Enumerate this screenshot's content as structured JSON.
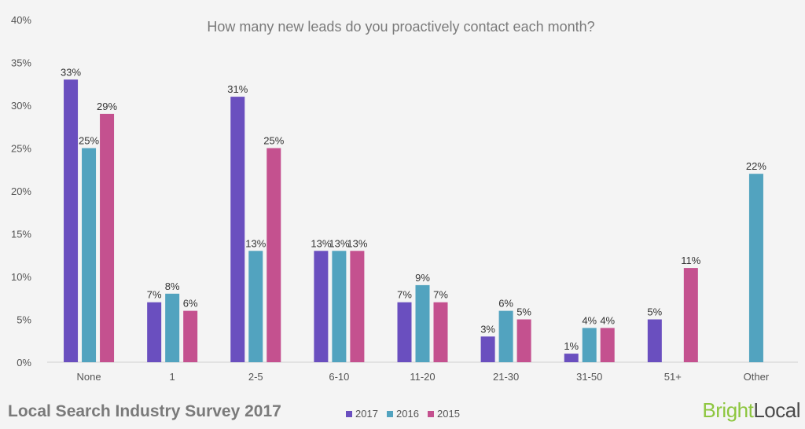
{
  "chart_data": {
    "type": "bar",
    "title": "How many new leads do you proactively contact each month?",
    "categories": [
      "None",
      "1",
      "2-5",
      "6-10",
      "11-20",
      "21-30",
      "31-50",
      "51+",
      "Other"
    ],
    "series": [
      {
        "name": "2017",
        "color": "#6a4fbf",
        "values": [
          33,
          7,
          31,
          13,
          7,
          3,
          1,
          5,
          null
        ]
      },
      {
        "name": "2016",
        "color": "#52a3bf",
        "values": [
          25,
          8,
          13,
          13,
          9,
          6,
          4,
          null,
          22
        ]
      },
      {
        "name": "2015",
        "color": "#c4518f",
        "values": [
          29,
          6,
          25,
          13,
          7,
          5,
          4,
          11,
          null
        ]
      }
    ],
    "ylim": [
      0,
      40
    ],
    "yticks": [
      "0%",
      "5%",
      "10%",
      "15%",
      "20%",
      "25%",
      "30%",
      "35%",
      "40%"
    ],
    "value_suffix": "%",
    "legend_position": "bottom-center"
  },
  "footer": {
    "survey_title": "Local Search Industry Survey 2017",
    "brand_part1": "Bright",
    "brand_part2": "Local"
  }
}
